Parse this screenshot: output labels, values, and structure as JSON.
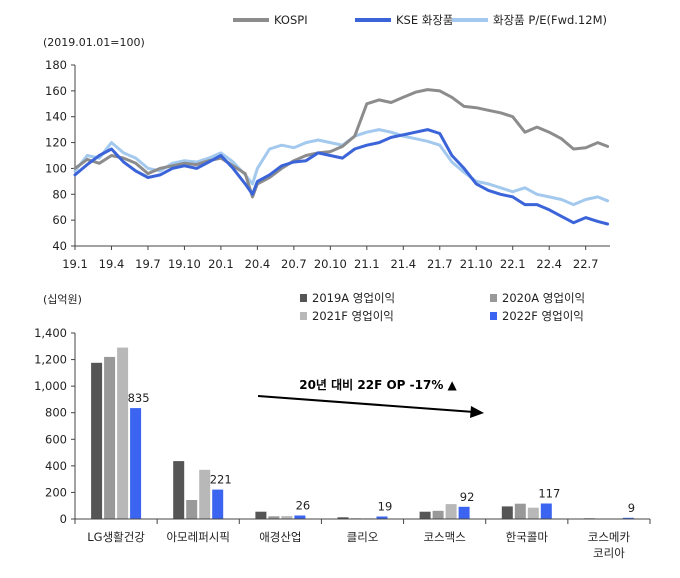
{
  "chart_data": [
    {
      "type": "line",
      "unit_label": "(2019.01.01=100)",
      "ylim": [
        40,
        180
      ],
      "yticks": [
        40,
        60,
        80,
        100,
        120,
        140,
        160,
        180
      ],
      "xlim": [
        0,
        44
      ],
      "x_tick_labels": [
        "19.1",
        "19.4",
        "19.7",
        "19.10",
        "20.1",
        "20.4",
        "20.7",
        "20.10",
        "21.1",
        "21.4",
        "21.7",
        "21.10",
        "22.1",
        "22.4",
        "22.7"
      ],
      "x_tick_positions": [
        0,
        3,
        6,
        9,
        12,
        15,
        18,
        21,
        24,
        27,
        30,
        33,
        36,
        39,
        42
      ],
      "grid": false,
      "legend": "top",
      "series": [
        {
          "name": "KOSPI",
          "color": "#8c8c8c",
          "x": [
            0,
            1,
            2,
            3,
            4,
            5,
            6,
            7,
            8,
            9,
            10,
            11,
            12,
            13,
            14,
            14.6,
            15,
            16,
            17,
            18,
            19,
            20,
            21,
            22,
            23,
            24,
            25,
            26,
            27,
            28,
            29,
            30,
            31,
            32,
            33,
            34,
            35,
            36,
            37,
            38,
            39,
            40,
            41,
            42,
            43,
            43.8
          ],
          "y": [
            100,
            107,
            104,
            110,
            108,
            104,
            96,
            100,
            102,
            104,
            103,
            106,
            108,
            102,
            96,
            78,
            88,
            93,
            100,
            106,
            110,
            112,
            113,
            117,
            125,
            150,
            153,
            151,
            155,
            159,
            161,
            160,
            155,
            148,
            147,
            145,
            143,
            140,
            128,
            132,
            128,
            123,
            115,
            116,
            120,
            117
          ]
        },
        {
          "name": "KSE 화장품",
          "color": "#3b64d9",
          "x": [
            0,
            1,
            2,
            3,
            4,
            5,
            6,
            7,
            8,
            9,
            10,
            11,
            12,
            13,
            14,
            14.6,
            15,
            16,
            17,
            18,
            19,
            20,
            21,
            22,
            23,
            24,
            25,
            26,
            27,
            28,
            29,
            30,
            31,
            32,
            33,
            34,
            35,
            36,
            37,
            38,
            39,
            40,
            41,
            42,
            43,
            43.8
          ],
          "y": [
            95,
            103,
            110,
            115,
            105,
            98,
            93,
            95,
            100,
            102,
            100,
            105,
            110,
            100,
            88,
            80,
            90,
            95,
            102,
            105,
            106,
            112,
            110,
            108,
            115,
            118,
            120,
            124,
            126,
            128,
            130,
            127,
            110,
            100,
            88,
            83,
            80,
            78,
            72,
            72,
            68,
            63,
            58,
            62,
            59,
            57
          ]
        },
        {
          "name": "화장품 P/E(Fwd.12M)",
          "color": "#a3c9ee",
          "x": [
            0,
            1,
            2,
            3,
            4,
            5,
            6,
            7,
            8,
            9,
            10,
            11,
            12,
            13,
            14,
            14.6,
            15,
            16,
            17,
            18,
            19,
            20,
            21,
            22,
            23,
            24,
            25,
            26,
            27,
            28,
            29,
            30,
            31,
            32,
            33,
            34,
            35,
            36,
            37,
            38,
            39,
            40,
            41,
            42,
            43,
            43.8
          ],
          "y": [
            98,
            110,
            108,
            120,
            112,
            108,
            100,
            98,
            104,
            106,
            105,
            108,
            112,
            105,
            95,
            88,
            100,
            115,
            118,
            116,
            120,
            122,
            120,
            118,
            125,
            128,
            130,
            128,
            125,
            123,
            121,
            118,
            105,
            97,
            90,
            88,
            85,
            82,
            85,
            80,
            78,
            76,
            72,
            76,
            78,
            75
          ]
        }
      ]
    },
    {
      "type": "bar",
      "unit_label": "(십억원)",
      "categories": [
        "LG생활건강",
        "아모레퍼시픽",
        "애경산업",
        "클리오",
        "코스맥스",
        "한국콜마",
        "코스메카\n코리아"
      ],
      "ylim": [
        0,
        1400
      ],
      "yticks": [
        0,
        200,
        400,
        600,
        800,
        1000,
        1200,
        1400
      ],
      "grid": false,
      "legend": "top-right",
      "series": [
        {
          "name": "2019A  영업이익",
          "color": "#555555",
          "values": [
            1176,
            436,
            55,
            13,
            55,
            95,
            5
          ]
        },
        {
          "name": "2020A  영업이익",
          "color": "#999999",
          "values": [
            1220,
            143,
            20,
            5,
            62,
            115,
            3
          ]
        },
        {
          "name": "2021F  영업이익",
          "color": "#b8b8b8",
          "values": [
            1290,
            370,
            22,
            5,
            112,
            85,
            3
          ]
        },
        {
          "name": "2022F  영업이익",
          "color": "#3b64f0",
          "values": [
            835,
            221,
            26,
            19,
            92,
            117,
            9
          ]
        }
      ],
      "data_labels": [
        "835",
        "221",
        "26",
        "19",
        "92",
        "117",
        "9"
      ],
      "annotation": "20년 대비 22F OP -17% ▲"
    }
  ]
}
